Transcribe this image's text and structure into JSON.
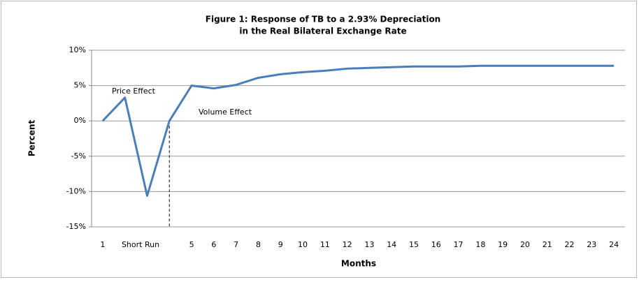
{
  "chart_data": {
    "type": "line",
    "title": [
      "Figure 1: Response of TB to a 2.93% Depreciation",
      "in the Real Bilateral Exchange Rate"
    ],
    "y_label": "Percent",
    "x_label": "Months",
    "categories": [
      "1",
      null,
      null,
      null,
      "5",
      "6",
      "7",
      "8",
      "9",
      "10",
      "11",
      "12",
      "13",
      "14",
      "15",
      "16",
      "17",
      "18",
      "19",
      "20",
      "21",
      "22",
      "23",
      "24"
    ],
    "values": [
      0,
      3.3,
      -10.6,
      0,
      5,
      4.6,
      5.1,
      6.1,
      6.6,
      6.9,
      7.1,
      7.4,
      7.5,
      7.6,
      7.7,
      7.7,
      7.7,
      7.8,
      7.8,
      7.8,
      7.8,
      7.8,
      7.8,
      7.8
    ],
    "color": "#4a7ebb",
    "ylim": [
      -15,
      10
    ],
    "yticks": [
      {
        "value": -15,
        "label": "-15%"
      },
      {
        "value": -10,
        "label": "-10%"
      },
      {
        "value": -5,
        "label": "-5%"
      },
      {
        "value": 0,
        "label": "0%"
      },
      {
        "value": 5,
        "label": "5%"
      },
      {
        "value": 10,
        "label": "10%"
      }
    ],
    "grid": true,
    "annotations": [
      "Price Effect",
      "Volume Effect",
      "Short Run"
    ]
  }
}
